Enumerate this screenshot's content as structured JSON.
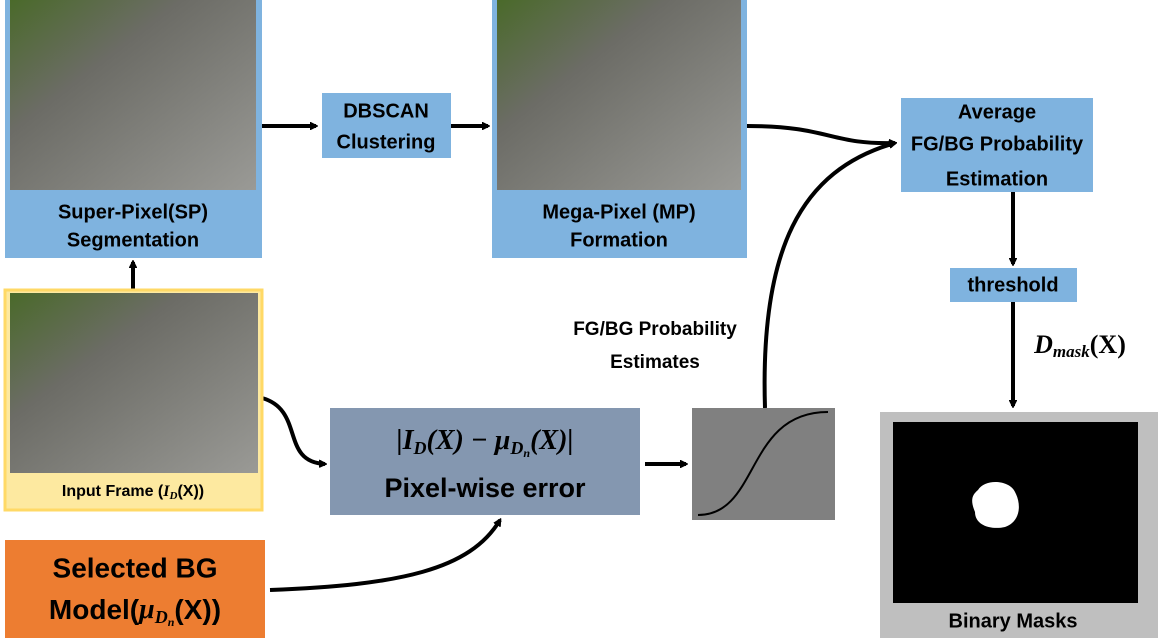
{
  "sp_block": {
    "lines": [
      "Super-Pixel(SP)",
      "Segmentation"
    ]
  },
  "dbscan_block": {
    "lines": [
      "DBSCAN",
      "Clustering"
    ]
  },
  "mp_block": {
    "lines": [
      "Mega-Pixel (MP)",
      "Formation"
    ]
  },
  "average_block": {
    "lines": [
      "Average",
      "FG/BG Probability",
      "Estimation"
    ]
  },
  "threshold_block": {
    "label": "threshold"
  },
  "mask_formula": {
    "parts": [
      "D",
      "mask",
      "(X)"
    ]
  },
  "estimates_label": {
    "lines": [
      "FG/BG Probability",
      "Estimates"
    ]
  },
  "input_frame": {
    "parts": [
      "Input Frame (",
      "I",
      "D",
      "(X))"
    ]
  },
  "error_block": {
    "formula": [
      "|I",
      "D",
      "(X) − μ",
      "D",
      "n",
      "(X)|"
    ],
    "label": "Pixel-wise error"
  },
  "model_block": {
    "line1": "Selected BG",
    "parts": [
      "Model(",
      "μ",
      "D",
      "n",
      "(X))"
    ]
  },
  "mask_block": {
    "label": "Binary Masks"
  }
}
